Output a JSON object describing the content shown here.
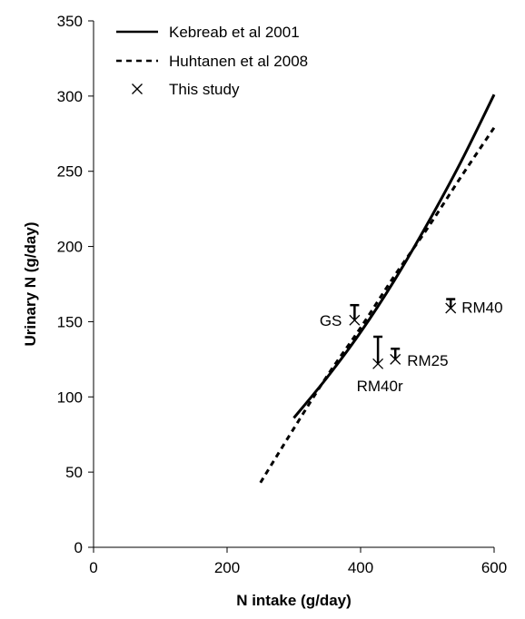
{
  "chart_data": {
    "type": "line",
    "xlabel": "N intake (g/day)",
    "ylabel": "Urinary N (g/day)",
    "xlim": [
      0,
      600
    ],
    "ylim": [
      0,
      350
    ],
    "xticks": [
      "0",
      "200",
      "400",
      "600"
    ],
    "yticks": [
      "0",
      "50",
      "100",
      "150",
      "200",
      "250",
      "300",
      "350"
    ],
    "grid": false,
    "legend_position": "top-left",
    "series": [
      {
        "name": "Kebreab et al 2001",
        "style": "solid",
        "x": [
          300,
          350,
          400,
          450,
          500,
          550,
          600
        ],
        "y": [
          86,
          113,
          143,
          177,
          215,
          256,
          301
        ]
      },
      {
        "name": "Huhtanen et al 2008",
        "style": "dashed",
        "x": [
          250,
          300,
          350,
          400,
          450,
          500,
          550,
          600
        ],
        "y": [
          43,
          79,
          114,
          146,
          180,
          212,
          246,
          279
        ]
      },
      {
        "name": "This study",
        "style": "marker-x",
        "points": [
          {
            "label": "GS",
            "x": 391,
            "y": 151,
            "err_top": 161
          },
          {
            "label": "RM40r",
            "x": 426,
            "y": 122,
            "err_top": 140
          },
          {
            "label": "RM25",
            "x": 452,
            "y": 125,
            "err_top": 132
          },
          {
            "label": "RM40",
            "x": 535,
            "y": 159,
            "err_top": 165
          }
        ]
      }
    ]
  }
}
